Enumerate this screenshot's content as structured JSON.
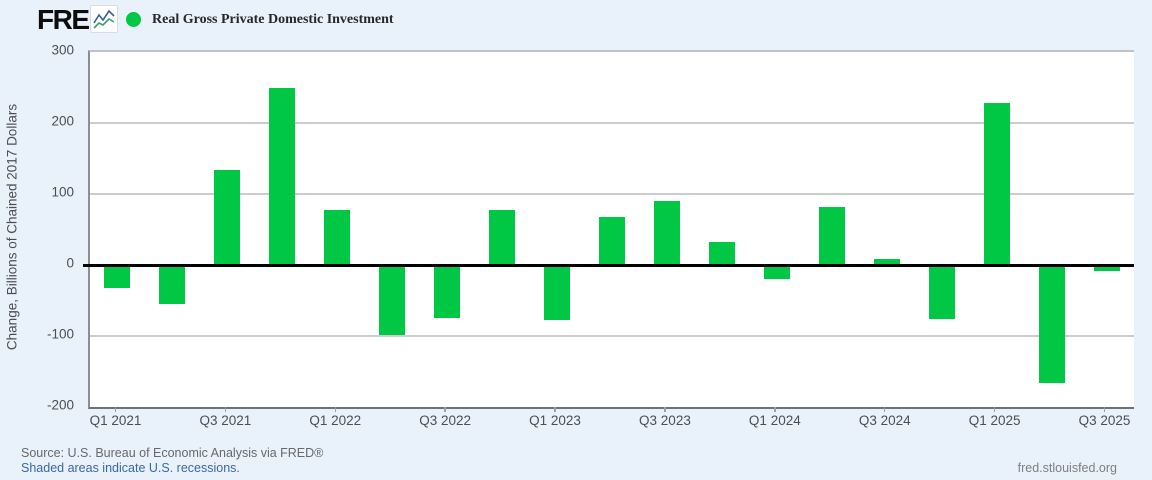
{
  "header": {
    "logo_text": "FRED",
    "logo_registered": "®",
    "series_label": "Real Gross Private Domestic Investment",
    "series_color": "#00c845"
  },
  "chart_data": {
    "type": "bar",
    "title": "Real Gross Private Domestic Investment",
    "xlabel": "",
    "ylabel": "Change, Billions of Chained 2017 Dollars",
    "ylim": [
      -200,
      300
    ],
    "yticks": [
      300,
      200,
      100,
      0,
      -100,
      -200
    ],
    "gridlines": [
      200,
      100,
      -100
    ],
    "grid": true,
    "legend_position": "top-left",
    "bar_color": "#00c845",
    "categories": [
      "Q1 2021",
      "Q2 2021",
      "Q3 2021",
      "Q4 2021",
      "Q1 2022",
      "Q2 2022",
      "Q3 2022",
      "Q4 2022",
      "Q1 2023",
      "Q2 2023",
      "Q3 2023",
      "Q4 2023",
      "Q1 2024",
      "Q2 2024",
      "Q3 2024",
      "Q4 2024",
      "Q1 2025",
      "Q2 2025",
      "Q3 2025"
    ],
    "values": [
      -33,
      -55,
      134,
      250,
      77,
      -98,
      -74,
      77,
      -78,
      68,
      90,
      32,
      -20,
      82,
      8,
      -76,
      228,
      -166,
      -8
    ],
    "xtick_labels": [
      "Q1 2021",
      "Q3 2021",
      "Q1 2022",
      "Q3 2022",
      "Q1 2023",
      "Q3 2023",
      "Q1 2024",
      "Q3 2024",
      "Q1 2025",
      "Q3 2025"
    ],
    "xtick_every": 2
  },
  "footer": {
    "source_text": "Source: U.S. Bureau of Economic Analysis via FRED®",
    "recession_note": "Shaded areas indicate U.S. recessions.",
    "site_text": "fred.stlouisfed.org"
  },
  "colors": {
    "page_background": "#e9f1fa",
    "plot_background": "#ffffff",
    "gridline": "#cccccc",
    "zero_line": "#000000",
    "axis_text": "#4b4f54"
  }
}
